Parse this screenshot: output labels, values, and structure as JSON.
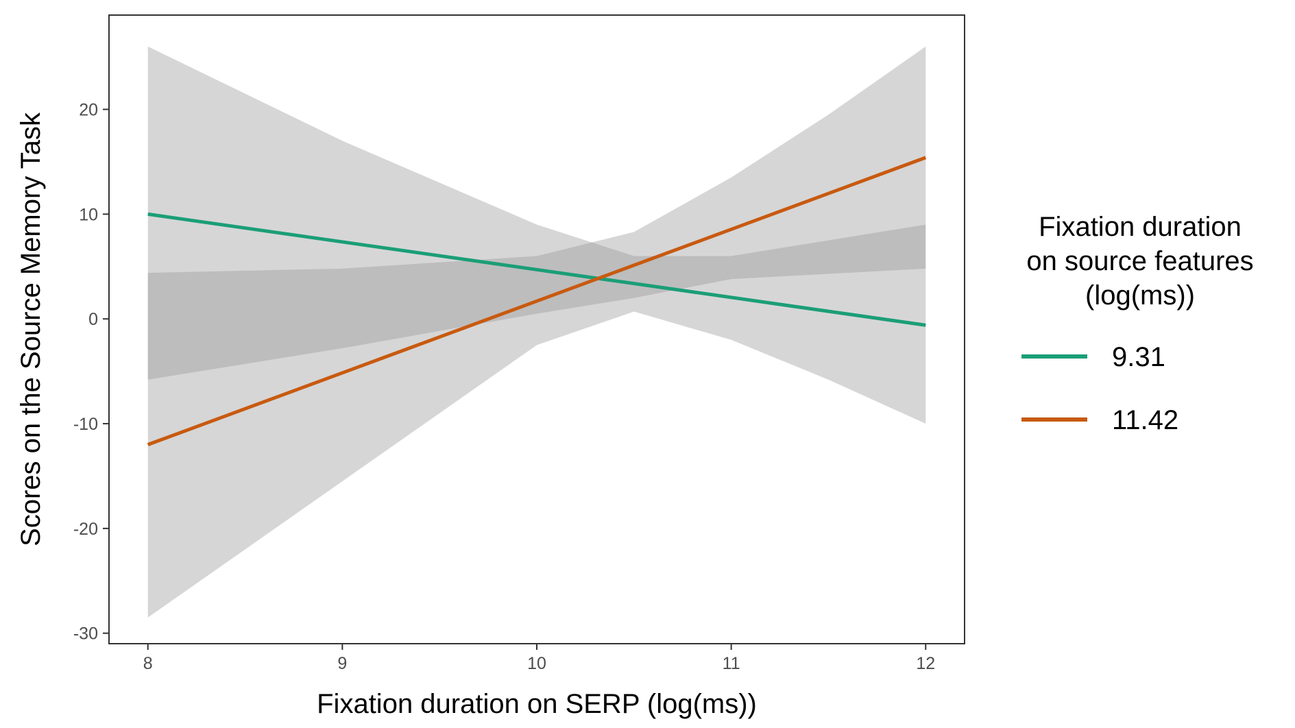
{
  "chart_data": {
    "type": "line",
    "title": "",
    "xlabel": "Fixation duration on SERP (log(ms))",
    "ylabel": "Scores on the Source Memory Task",
    "xlim": [
      7.8,
      12.2
    ],
    "ylim": [
      -31,
      29
    ],
    "x_ticks": [
      8,
      9,
      10,
      11,
      12
    ],
    "x_tick_labels": [
      "8",
      "9",
      "10",
      "11",
      "12"
    ],
    "y_ticks": [
      -30,
      -20,
      -10,
      0,
      10,
      20
    ],
    "y_tick_labels": [
      "-30",
      "-20",
      "-10",
      "0",
      "10",
      "20"
    ],
    "grid": false,
    "legend": {
      "title_lines": [
        "Fixation duration",
        "on source features",
        "(log(ms))"
      ],
      "placement": "right"
    },
    "series": [
      {
        "name": "9.31",
        "color": "#1b9e77",
        "x": [
          8,
          12
        ],
        "y": [
          10.0,
          -0.6
        ],
        "ci_x": [
          8,
          9,
          9.5,
          10,
          10.5,
          11,
          11.5,
          12
        ],
        "ci_lower": [
          -28.5,
          -15.5,
          -9.0,
          -2.5,
          0.7,
          -2.0,
          -5.8,
          -10.0
        ],
        "ci_upper": [
          26.0,
          17.0,
          13.0,
          9.0,
          6.0,
          6.0,
          7.5,
          9.0
        ]
      },
      {
        "name": "11.42",
        "color": "#c85a10",
        "x": [
          8,
          12
        ],
        "y": [
          -12.0,
          15.4
        ],
        "ci_x": [
          8,
          9,
          10,
          10.5,
          11,
          11.5,
          12
        ],
        "ci_lower": [
          -5.8,
          -2.8,
          0.5,
          2.0,
          3.8,
          4.3,
          4.8
        ],
        "ci_upper": [
          4.4,
          4.8,
          6.0,
          8.3,
          13.5,
          19.5,
          26.0
        ]
      }
    ]
  }
}
